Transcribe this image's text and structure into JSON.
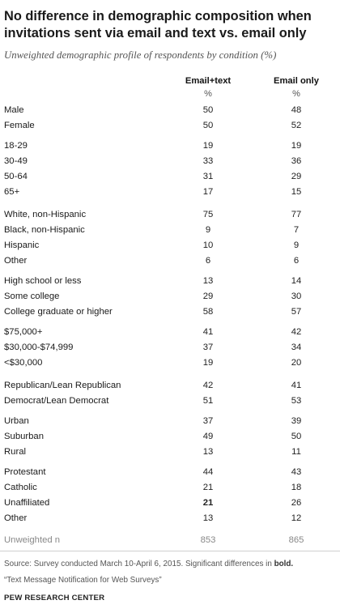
{
  "title": "No difference in demographic composition when invitations sent via email and text vs. email only",
  "subtitle": "Unweighted demographic profile of respondents by condition (%)",
  "columns": [
    "Email+text",
    "Email only"
  ],
  "unit": "%",
  "rows": [
    {
      "label": "Male",
      "email_text": "50",
      "email_only": "48"
    },
    {
      "label": "Female",
      "email_text": "50",
      "email_only": "52"
    },
    {
      "label": "18-29",
      "email_text": "19",
      "email_only": "19"
    },
    {
      "label": "30-49",
      "email_text": "33",
      "email_only": "36"
    },
    {
      "label": "50-64",
      "email_text": "31",
      "email_only": "29"
    },
    {
      "label": "65+",
      "email_text": "17",
      "email_only": "15"
    },
    {
      "label": "White, non-Hispanic",
      "email_text": "75",
      "email_only": "77"
    },
    {
      "label": "Black, non-Hispanic",
      "email_text": "9",
      "email_only": "7"
    },
    {
      "label": "Hispanic",
      "email_text": "10",
      "email_only": "9"
    },
    {
      "label": "Other",
      "email_text": "6",
      "email_only": "6"
    },
    {
      "label": "High school or less",
      "email_text": "13",
      "email_only": "14"
    },
    {
      "label": "Some college",
      "email_text": "29",
      "email_only": "30"
    },
    {
      "label": "College graduate or higher",
      "email_text": "58",
      "email_only": "57"
    },
    {
      "label": "$75,000+",
      "email_text": "41",
      "email_only": "42"
    },
    {
      "label": "$30,000-$74,999",
      "email_text": "37",
      "email_only": "34"
    },
    {
      "label": "<$30,000",
      "email_text": "19",
      "email_only": "20"
    },
    {
      "label": "Republican/Lean Republican",
      "email_text": "42",
      "email_only": "41"
    },
    {
      "label": "Democrat/Lean Democrat",
      "email_text": "51",
      "email_only": "53"
    },
    {
      "label": "Urban",
      "email_text": "37",
      "email_only": "39"
    },
    {
      "label": "Suburban",
      "email_text": "49",
      "email_only": "50"
    },
    {
      "label": "Rural",
      "email_text": "13",
      "email_only": "11"
    },
    {
      "label": "Protestant",
      "email_text": "44",
      "email_only": "43"
    },
    {
      "label": "Catholic",
      "email_text": "21",
      "email_only": "18"
    },
    {
      "label": "Unaffiliated",
      "email_text": "21",
      "email_only": "26",
      "email_text_bold": true
    },
    {
      "label": "Other",
      "email_text": "13",
      "email_only": "12"
    },
    {
      "label": "Unweighted n",
      "email_text": "853",
      "email_only": "865"
    }
  ],
  "source_prefix": "Source: Survey conducted March 10-April 6, 2015. Significant differences in ",
  "source_bold": "bold.",
  "citation": "“Text Message Notification for Web Surveys”",
  "organization": "PEW RESEARCH CENTER"
}
